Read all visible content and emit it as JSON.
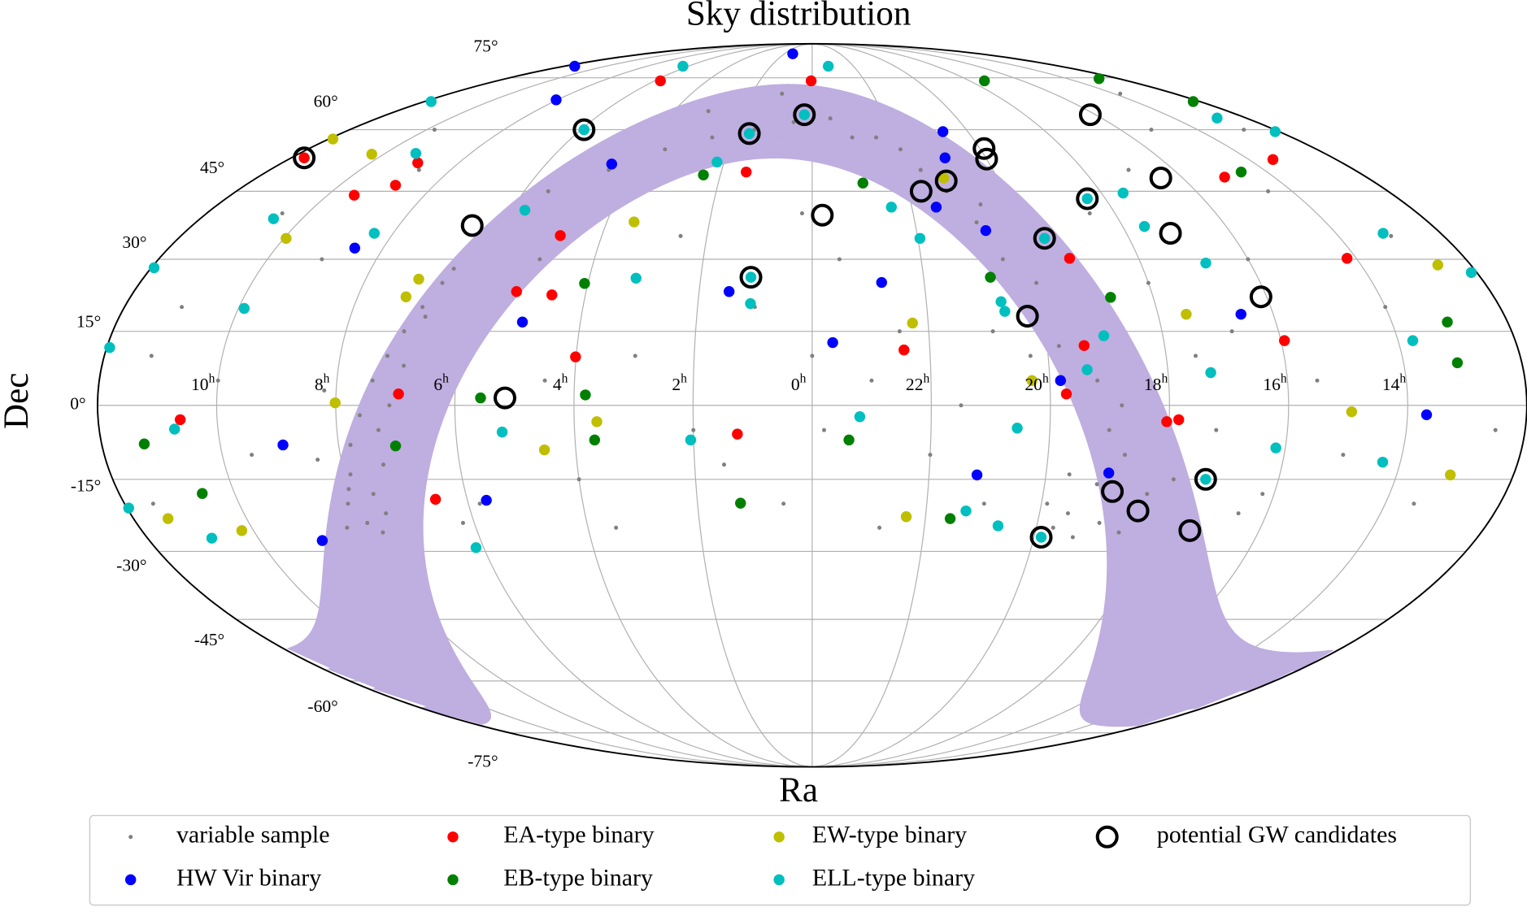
{
  "chart_data": {
    "type": "scatter",
    "projection": "mollweide",
    "title": "Sky distribution",
    "x_label": "Ra",
    "y_label": "Dec",
    "grid": true,
    "xlim": [
      12,
      -12
    ],
    "ylim": [
      -90,
      90
    ],
    "xticks": [
      {
        "value": 10,
        "label": "10h"
      },
      {
        "value": 8,
        "label": "8h"
      },
      {
        "value": 6,
        "label": "6h"
      },
      {
        "value": 4,
        "label": "4h"
      },
      {
        "value": 2,
        "label": "2h"
      },
      {
        "value": 0,
        "label": "0h"
      },
      {
        "value": 22,
        "label": "22h"
      },
      {
        "value": 20,
        "label": "20h"
      },
      {
        "value": 18,
        "label": "18h"
      },
      {
        "value": 16,
        "label": "16h"
      },
      {
        "value": 14,
        "label": "14h"
      }
    ],
    "yticks": [
      {
        "value": -75,
        "label": "-75°"
      },
      {
        "value": -60,
        "label": "-60°"
      },
      {
        "value": -45,
        "label": "-45°"
      },
      {
        "value": -30,
        "label": "-30°"
      },
      {
        "value": -15,
        "label": "-15°"
      },
      {
        "value": 0,
        "label": "0°"
      },
      {
        "value": 15,
        "label": "15°"
      },
      {
        "value": 30,
        "label": "30°"
      },
      {
        "value": 45,
        "label": "45°"
      },
      {
        "value": 60,
        "label": "60°"
      },
      {
        "value": 75,
        "label": "75°"
      }
    ],
    "series": [
      {
        "name": "variable sample",
        "color": "#808080",
        "marker": "dot",
        "x": [
          7.2,
          7.4,
          7.6,
          7.8,
          7.9,
          8.1,
          8.3,
          7.0,
          6.8,
          6.6,
          7.5,
          7.7,
          8.0,
          7.3,
          7.1,
          6.9,
          6.7,
          6.5,
          7.9,
          8.4,
          19.5,
          19.7,
          19.3,
          19.9,
          18.9,
          18.5,
          18.2,
          19.1,
          19.6,
          18.7,
          20.5,
          20.8,
          21.2,
          21.6,
          20.2,
          19.8,
          20.6,
          21.9,
          22.4,
          20.0,
          0.5,
          1.5,
          2.5,
          3.5,
          4.5,
          23.5,
          1.0,
          3.0,
          5.5,
          23.0,
          10.5,
          11.0,
          9.5,
          10.0,
          9.0,
          11.5,
          9.8,
          8.7,
          10.2,
          11.2,
          3.0,
          2.0,
          1.0,
          4.0,
          5.0,
          2.5,
          0.5,
          1.5,
          3.5,
          4.5,
          23.0,
          22.0,
          21.0,
          22.5,
          23.5,
          0.2,
          22.8,
          21.5,
          23.8,
          0.0,
          14.0,
          15.0,
          16.0,
          13.5,
          14.5,
          15.5,
          17.0,
          13.0,
          16.5,
          12.5,
          17.5,
          18.0,
          17.2,
          16.8,
          15.2,
          13.8,
          12.8,
          18.5,
          17.8,
          16.2,
          19.2,
          19.0,
          18.8,
          20.3,
          20.9,
          7.6,
          7.3,
          8.2,
          6.2,
          5.8
        ],
        "values": [
          10,
          5,
          -2,
          -8,
          -14,
          -20,
          -25,
          15,
          20,
          25,
          -22,
          -26,
          -17,
          -5,
          0,
          8,
          18,
          28,
          -24,
          -11,
          -22,
          -25,
          -27,
          -20,
          -24,
          -26,
          -18,
          -16,
          -14,
          -10,
          30,
          38,
          45,
          50,
          20,
          12,
          42,
          55,
          58,
          25,
          62,
          60,
          58,
          55,
          50,
          63,
          70,
          65,
          45,
          58,
          40,
          20,
          -10,
          5,
          30,
          -20,
          60,
          50,
          -25,
          10,
          10,
          -5,
          20,
          -15,
          30,
          35,
          -20,
          -12,
          -25,
          5,
          5,
          -10,
          -20,
          15,
          30,
          40,
          -25,
          0,
          -5,
          10,
          20,
          -10,
          30,
          -20,
          45,
          5,
          50,
          35,
          -22,
          -5,
          10,
          25,
          -5,
          15,
          60,
          70,
          60,
          40,
          -15,
          -18,
          5,
          -5,
          0,
          10,
          15,
          -18,
          -12,
          3,
          -24,
          -20
        ]
      },
      {
        "name": "HW Vir binary",
        "color": "#0000ff",
        "marker": "circle",
        "x": [
          11.5,
          8.04,
          4.52,
          5.0,
          1.47,
          23.65,
          8.53,
          8.94,
          8.87,
          5.67,
          1.4,
          20.64,
          20.94,
          21.51,
          22.76,
          19.82,
          18.93,
          16.56,
          13.68,
          21.18,
          20.67
        ],
        "values": [
          79,
          68.2,
          51.4,
          16.9,
          23.2,
          12.7,
          32.4,
          -8.0,
          -27.7,
          -19.3,
          84,
          59.5,
          52.9,
          41.4,
          25.1,
          5.0,
          -13.7,
          18.5,
          -1.9,
          -14.1,
          36.2
        ]
      },
      {
        "name": "EA-type binary",
        "color": "#ff0000",
        "marker": "circle",
        "x": [
          11.7,
          8.93,
          8.82,
          9.45,
          4.79,
          5.23,
          4.59,
          4.01,
          1.26,
          6.55,
          6.95,
          10.62,
          0.04,
          5.78,
          13.45,
          14.17,
          15.94,
          18.04,
          17.84,
          19.73,
          19.37,
          15.07,
          19.27,
          22.44,
          1.45
        ],
        "values": [
          52.9,
          51.7,
          46.4,
          44.1,
          35.1,
          23.2,
          22.5,
          9.8,
          -5.8,
          -19.1,
          2.3,
          -2.9,
          74,
          74,
          52.5,
          30.2,
          13.1,
          -3.3,
          -2.9,
          2.3,
          12.1,
          48.3,
          30.2,
          11.2,
          49.5
        ]
      },
      {
        "name": "EB-type binary",
        "color": "#008000",
        "marker": "circle",
        "x": [
          12.2,
          12.76,
          17.44,
          14.57,
          13.04,
          13.09,
          4.06,
          5.57,
          3.81,
          3.67,
          1.25,
          23.38,
          21.56,
          11.28,
          10.56,
          7.04,
          2.37,
          22.92,
          20.8,
          18.75
        ],
        "values": [
          67.7,
          74.7,
          74,
          49.5,
          16.9,
          8.6,
          24.9,
          1.5,
          2.1,
          -7.0,
          -19.9,
          -7.0,
          -23.1,
          -7.8,
          -17.9,
          -8.2,
          48.8,
          46.9,
          26.2,
          22.0
        ]
      },
      {
        "name": "EW-type binary",
        "color": "#bfbf00",
        "marker": "circle",
        "x": [
          11.9,
          10.28,
          9.96,
          7.05,
          7.15,
          3.47,
          4.53,
          3.62,
          8.01,
          10.21,
          11.39,
          22.27,
          20.3,
          17.51,
          14.94,
          13.08,
          12.6,
          22.34,
          21.16
        ],
        "values": [
          57.6,
          53.8,
          34.5,
          25.8,
          22.1,
          38.1,
          -9.0,
          -3.3,
          0.5,
          -25.6,
          -23.1,
          16.7,
          5.0,
          18.5,
          -1.3,
          -14.1,
          28.8,
          -22.7,
          48.1
        ]
      },
      {
        "name": "ELL-type binary",
        "color": "#00bfbf",
        "marker": "circle",
        "x": [
          11.95,
          11.95,
          9.9,
          10.56,
          11.8,
          5.92,
          6.26,
          23.22,
          12.8,
          12.1,
          13.1,
          12.1,
          13.75,
          14.3,
          16.16,
          17.28,
          20.69,
          19.87,
          21.3,
          1.1,
          1.08,
          2.05,
          3.16,
          6.14,
          5.22,
          10.73,
          11.97,
          10.84,
          8.36,
          9.28,
          5.73,
          1.6,
          0.22,
          2.16,
          22.41,
          21.96,
          20.69,
          20.65,
          19.01,
          17.58,
          17.55,
          16.81,
          18.37,
          17.25,
          19.6,
          19.36,
          20.55,
          23.2
        ],
        "values": [
          11.7,
          28.2,
          19.7,
          38.8,
          67.7,
          60,
          79,
          79,
          63.1,
          59.5,
          35.6,
          27.2,
          13.1,
          -11.5,
          -8.6,
          6.6,
          -24.6,
          -27,
          -21.5,
          26.2,
          20.7,
          -7.0,
          26.0,
          -29.2,
          -5.4,
          -4.8,
          -20.9,
          -27.2,
          35.6,
          54,
          40.7,
          59,
          64,
          51.9,
          41.4,
          34.5,
          21.1,
          19.1,
          14.1,
          37.1,
          44.6,
          29.2,
          43.3,
          -15,
          34.5,
          7.2,
          -4.6,
          -2.3
        ]
      },
      {
        "name": "potential GW candidates",
        "color": "#000000",
        "marker": "ring",
        "x": [
          11.7,
          6.58,
          5.92,
          1.6,
          0.22,
          23.8,
          1.1,
          5.16,
          21.73,
          21.13,
          19.9,
          20.0,
          16.15,
          18.37,
          16.47,
          19.6,
          17.16,
          16.1,
          20.27,
          17.25,
          18.81,
          18.28,
          17.24,
          19.87
        ],
        "values": [
          52.9,
          37.3,
          60,
          59,
          64,
          39.6,
          26.2,
          1.5,
          45,
          47.4,
          55.2,
          52.6,
          64,
          43.3,
          48.1,
          34.5,
          35.6,
          22.1,
          18.1,
          -15,
          -17.5,
          -21.5,
          -25.6,
          -27
        ]
      }
    ]
  }
}
